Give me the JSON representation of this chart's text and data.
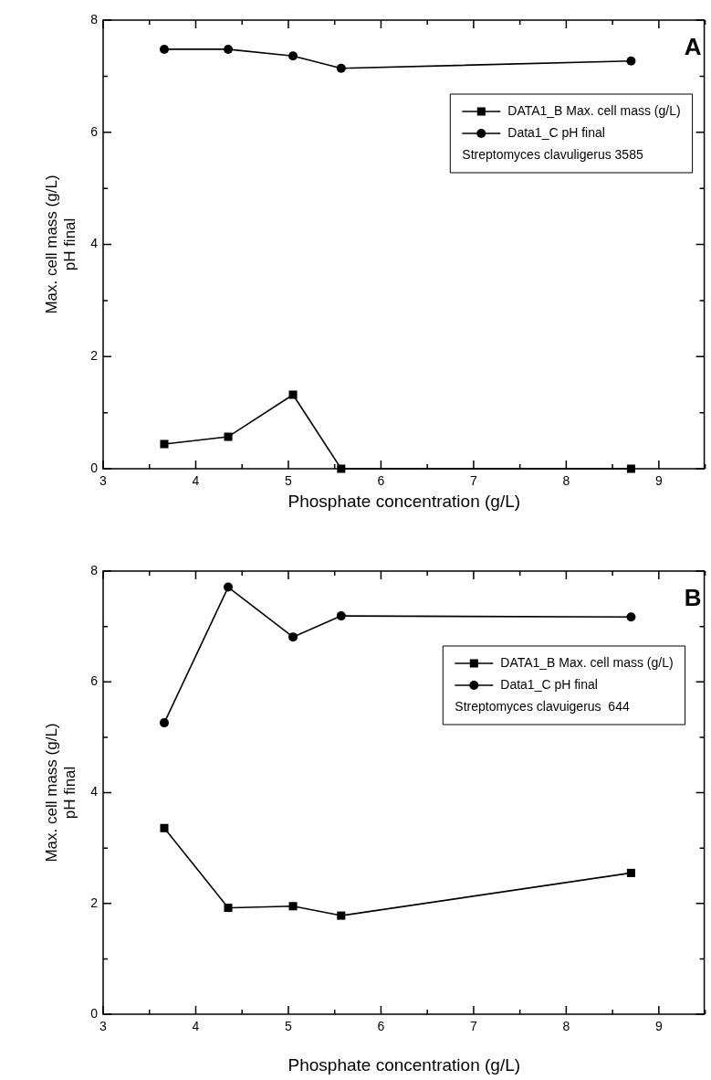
{
  "chart_data": [
    {
      "type": "line",
      "xlabel": "Phosphate concentration (g/L)",
      "ylabel": "Max. cell mass (g/L)\npH final",
      "legend_title": "Streptomyces clavuligerus 3585",
      "annotations": [
        "A"
      ],
      "legend": "top right",
      "grid": false,
      "x": [
        3.66,
        4.35,
        5.05,
        5.57,
        8.7
      ],
      "xlim": [
        3,
        9.5
      ],
      "xticks": [
        3,
        {
          "value": 3.5,
          "label": null
        },
        4,
        {
          "value": 4.5,
          "label": null
        },
        5,
        {
          "value": 5.5,
          "label": null
        },
        6,
        {
          "value": 6.5,
          "label": null
        },
        7,
        {
          "value": 7.5,
          "label": null
        },
        8,
        {
          "value": 8.5,
          "label": null
        },
        9,
        {
          "value": 9.5,
          "label": null
        }
      ],
      "ylim": [
        0,
        8
      ],
      "yticks": [
        0,
        {
          "value": 1,
          "label": null
        },
        2,
        {
          "value": 3,
          "label": null
        },
        4,
        {
          "value": 5,
          "label": null
        },
        6,
        {
          "value": 7,
          "label": null
        },
        8
      ],
      "series": [
        {
          "name": "DATA1_B Max. cell mass (g/L)",
          "color": "#000000",
          "marker": "square",
          "values": [
            0.44,
            0.57,
            1.32,
            0,
            0
          ]
        },
        {
          "name": "Data1_C pH final",
          "color": "#000000",
          "marker": "circle",
          "values": [
            7.48,
            7.48,
            7.36,
            7.14,
            7.27
          ]
        }
      ]
    },
    {
      "type": "line",
      "xlabel": "Phosphate concentration (g/L)",
      "ylabel": "Max. cell mass (g/L)\npH final",
      "legend_title": "Streptomyces clavuigerus  644",
      "annotations": [
        "B"
      ],
      "legend": "top right",
      "grid": false,
      "x": [
        3.66,
        4.35,
        5.05,
        5.57,
        8.7
      ],
      "xlim": [
        3,
        9.5
      ],
      "xticks": [
        3,
        {
          "value": 3.5,
          "label": null
        },
        4,
        {
          "value": 4.5,
          "label": null
        },
        5,
        {
          "value": 5.5,
          "label": null
        },
        6,
        {
          "value": 6.5,
          "label": null
        },
        7,
        {
          "value": 7.5,
          "label": null
        },
        8,
        {
          "value": 8.5,
          "label": null
        },
        9,
        {
          "value": 9.5,
          "label": null
        }
      ],
      "ylim": [
        0,
        8
      ],
      "yticks": [
        0,
        {
          "value": 1,
          "label": null
        },
        2,
        {
          "value": 3,
          "label": null
        },
        4,
        {
          "value": 5,
          "label": null
        },
        6,
        {
          "value": 7,
          "label": null
        },
        8
      ],
      "series": [
        {
          "name": "DATA1_B Max. cell mass (g/L)",
          "color": "#000000",
          "marker": "square",
          "values": [
            3.36,
            1.92,
            1.95,
            1.78,
            2.55
          ]
        },
        {
          "name": "Data1_C pH final",
          "color": "#000000",
          "marker": "circle",
          "values": [
            5.26,
            7.71,
            6.81,
            7.19,
            7.17
          ]
        }
      ]
    }
  ]
}
